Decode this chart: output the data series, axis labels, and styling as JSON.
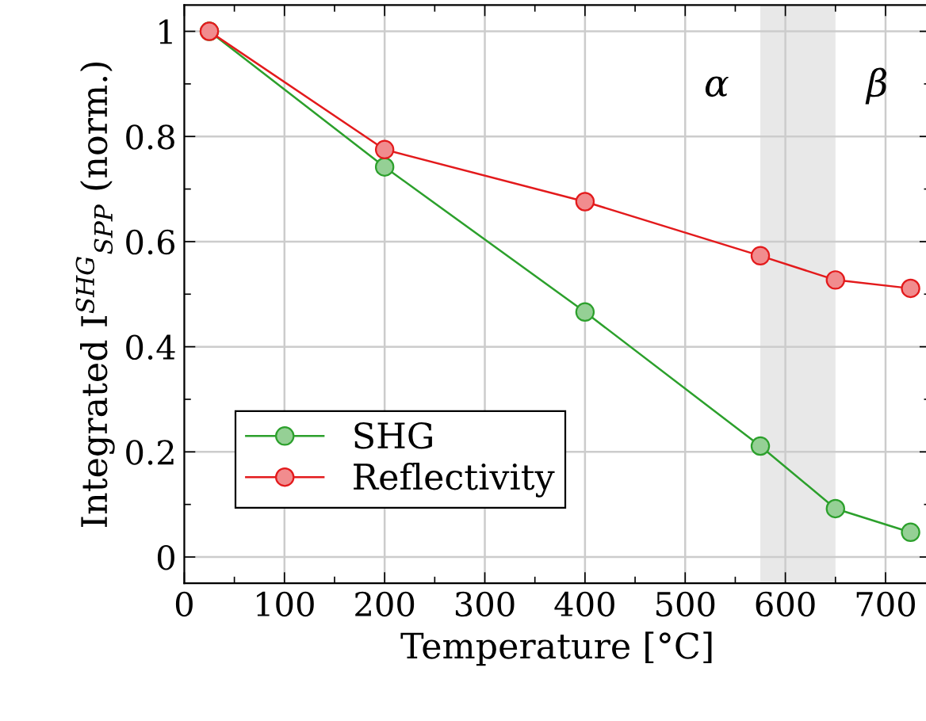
{
  "chart_data": {
    "type": "line",
    "xlabel": "Temperature [°C]",
    "ylabel": "Integrated I$^{SHG}$$_{SPP}$ (norm.)",
    "x": [
      25,
      200,
      400,
      575,
      650,
      725
    ],
    "series": [
      {
        "name": "SHG",
        "color": "#2ca02c",
        "values": [
          1,
          0.742,
          0.466,
          0.211,
          0.092,
          0.047
        ]
      },
      {
        "name": "Reflectivity",
        "color": "#e31a1c",
        "values": [
          1,
          0.775,
          0.676,
          0.573,
          0.527,
          0.511
        ]
      }
    ],
    "xlim": [
      0,
      745
    ],
    "ylim": [
      -0.05,
      1.05
    ],
    "xticks": [
      0,
      {
        "value": 50,
        "label": null
      },
      100,
      {
        "value": 150,
        "label": null
      },
      200,
      {
        "value": 250,
        "label": null
      },
      300,
      {
        "value": 350,
        "label": null
      },
      400,
      {
        "value": 450,
        "label": null
      },
      500,
      {
        "value": 550,
        "label": null
      },
      600,
      {
        "value": 650,
        "label": null
      },
      700
    ],
    "yticks": [
      0,
      {
        "value": 0.1,
        "label": null
      },
      0.2,
      {
        "value": 0.3,
        "label": null
      },
      0.4,
      {
        "value": 0.5,
        "label": null
      },
      0.6,
      {
        "value": 0.7,
        "label": null
      },
      0.8,
      {
        "value": 0.9,
        "label": null
      },
      1
    ],
    "bands": [
      {
        "axis": "x",
        "from": 575,
        "to": 650,
        "color": "#e8e8e8"
      }
    ],
    "annotations": [
      "α",
      "β"
    ],
    "grid": true,
    "legend": "bottom left",
    "marker": "circle",
    "line_style": "solid"
  }
}
